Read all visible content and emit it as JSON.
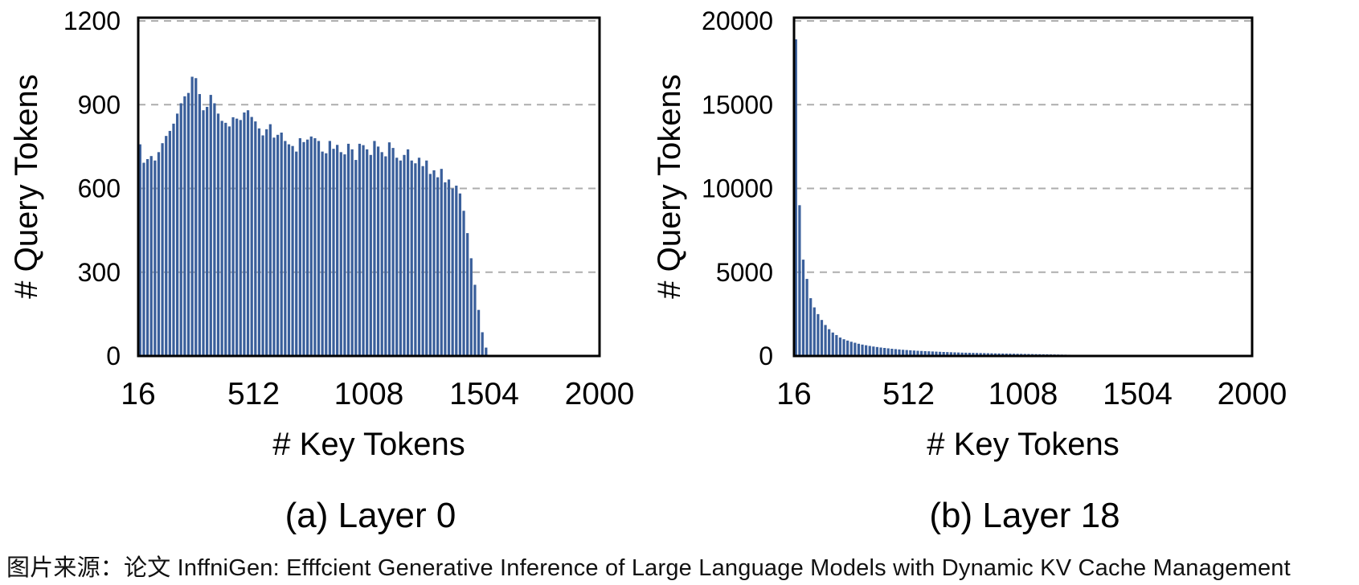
{
  "caption": "图片来源：论文 InffniGen: Efffcient Generative Inference of Large Language Models with Dynamic KV Cache Management",
  "colors": {
    "bar": "#3a5f9b",
    "grid": "#adadad",
    "axis": "#000000",
    "text": "#000000",
    "background": "#ffffff"
  },
  "chart_data": [
    {
      "type": "bar",
      "title": "(a) Layer 0",
      "xlabel": "# Key Tokens",
      "ylabel": "# Query Tokens",
      "xlim": [
        16,
        2000
      ],
      "ylim": [
        0,
        1200
      ],
      "xticks": [
        16,
        512,
        1008,
        1504,
        2000
      ],
      "yticks": [
        0,
        300,
        600,
        900,
        1200
      ],
      "grid": "dashed-horizontal",
      "legend": "none",
      "bin_start": 16,
      "bin_step": 16,
      "values": [
        758,
        692,
        705,
        716,
        700,
        730,
        762,
        788,
        806,
        832,
        868,
        905,
        930,
        942,
        1000,
        995,
        938,
        880,
        892,
        935,
        905,
        868,
        842,
        835,
        822,
        855,
        850,
        845,
        872,
        880,
        856,
        840,
        815,
        790,
        812,
        830,
        782,
        792,
        800,
        770,
        758,
        752,
        732,
        780,
        766,
        775,
        786,
        780,
        770,
        732,
        726,
        770,
        742,
        756,
        730,
        722,
        760,
        740,
        702,
        760,
        755,
        740,
        720,
        770,
        750,
        730,
        715,
        765,
        745,
        710,
        700,
        720,
        740,
        700,
        690,
        710,
        680,
        700,
        652,
        665,
        640,
        670,
        622,
        632,
        600,
        610,
        582,
        520,
        440,
        350,
        255,
        165,
        85,
        30
      ]
    },
    {
      "type": "bar",
      "title": "(b) Layer 18",
      "xlabel": "# Key Tokens",
      "ylabel": "# Query Tokens",
      "xlim": [
        16,
        2000
      ],
      "ylim": [
        0,
        20000
      ],
      "xticks": [
        16,
        512,
        1008,
        1504,
        2000
      ],
      "yticks": [
        0,
        5000,
        10000,
        15000,
        20000
      ],
      "grid": "dashed-horizontal",
      "legend": "none",
      "bin_start": 16,
      "bin_step": 16,
      "values": [
        18900,
        9000,
        5750,
        4600,
        3450,
        2900,
        2500,
        2150,
        1850,
        1600,
        1400,
        1250,
        1100,
        1000,
        920,
        850,
        790,
        730,
        680,
        640,
        600,
        565,
        535,
        505,
        480,
        455,
        430,
        410,
        390,
        370,
        355,
        340,
        325,
        310,
        300,
        290,
        280,
        270,
        260,
        250,
        240,
        232,
        224,
        216,
        208,
        200,
        195,
        190,
        185,
        180,
        175,
        170,
        165,
        160,
        155,
        150,
        146,
        142,
        138,
        134,
        130,
        126,
        122,
        118,
        114,
        110,
        106,
        102,
        98,
        94,
        90,
        86,
        82,
        78,
        74,
        70,
        65,
        60,
        55,
        50,
        60,
        40,
        30,
        25,
        20,
        15,
        10,
        0,
        0,
        0,
        0,
        0,
        0,
        0
      ]
    }
  ]
}
